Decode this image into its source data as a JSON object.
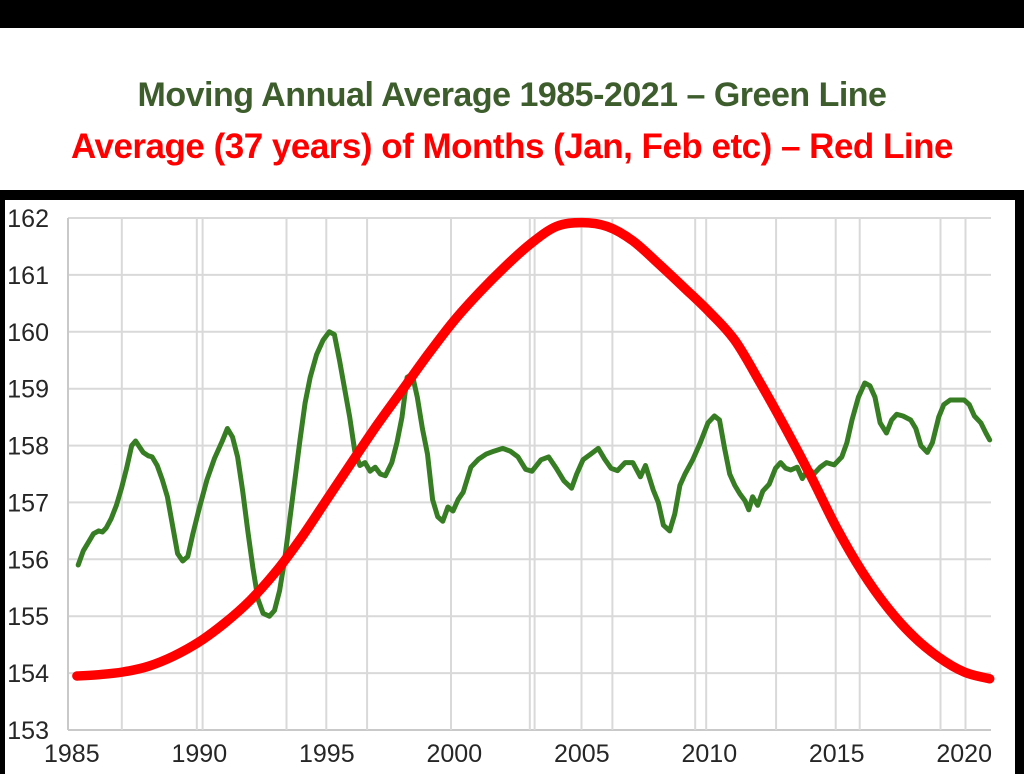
{
  "title": {
    "line1": "Moving Annual Average 1985-2021 – Green Line",
    "line2": "Average (37 years) of Months (Jan, Feb etc) – Red Line"
  },
  "colors": {
    "title_green": "#3d5d2d",
    "title_red": "#fe0000",
    "line_green": "#377d23",
    "line_red": "#fe0000",
    "gridline": "#d9d9d9",
    "axis_line": "#c9c9c9",
    "tick_label": "#262626",
    "frame_border": "#000000",
    "top_bar": "#000000"
  },
  "chart_data": {
    "type": "line",
    "title": "",
    "xlabel": "",
    "ylabel": "",
    "grid": true,
    "legend_position": "none (legend given in title text)",
    "x_axis": {
      "range": [
        1984.85,
        2021.05
      ],
      "ticks": [
        1985,
        1990,
        1995,
        2000,
        2005,
        2010,
        2015,
        2020
      ]
    },
    "y_axis": {
      "range": [
        153,
        162
      ],
      "ticks": [
        153,
        154,
        155,
        156,
        157,
        158,
        159,
        160,
        161,
        162
      ]
    },
    "x_gridlines_years": [
      1984.85,
      1986.96,
      1989.9,
      1990.13,
      1993.42,
      1994.98,
      1996.58,
      1999.87,
      2002.96,
      2003.15,
      2004.99,
      2006.2,
      2009.45,
      2009.88,
      2012.62,
      2014.96,
      2015.9,
      2019.07,
      2020.05
    ],
    "series": [
      {
        "name": "Moving Annual Average 1985-2021 (Green Line)",
        "color_key": "line_green",
        "stroke_width": 5,
        "smooth": false,
        "points": [
          [
            1985.25,
            155.9
          ],
          [
            1985.45,
            156.15
          ],
          [
            1985.65,
            156.3
          ],
          [
            1985.85,
            156.45
          ],
          [
            1986.05,
            156.5
          ],
          [
            1986.2,
            156.48
          ],
          [
            1986.35,
            156.55
          ],
          [
            1986.55,
            156.72
          ],
          [
            1986.75,
            156.95
          ],
          [
            1986.95,
            157.25
          ],
          [
            1987.15,
            157.6
          ],
          [
            1987.35,
            158.0
          ],
          [
            1987.5,
            158.08
          ],
          [
            1987.65,
            157.98
          ],
          [
            1987.8,
            157.88
          ],
          [
            1988.0,
            157.82
          ],
          [
            1988.15,
            157.8
          ],
          [
            1988.35,
            157.65
          ],
          [
            1988.55,
            157.4
          ],
          [
            1988.75,
            157.1
          ],
          [
            1988.95,
            156.6
          ],
          [
            1989.15,
            156.1
          ],
          [
            1989.35,
            155.97
          ],
          [
            1989.55,
            156.05
          ],
          [
            1989.75,
            156.45
          ],
          [
            1990.0,
            156.9
          ],
          [
            1990.3,
            157.4
          ],
          [
            1990.6,
            157.78
          ],
          [
            1990.9,
            158.08
          ],
          [
            1991.1,
            158.3
          ],
          [
            1991.3,
            158.15
          ],
          [
            1991.5,
            157.8
          ],
          [
            1991.7,
            157.2
          ],
          [
            1991.9,
            156.5
          ],
          [
            1992.1,
            155.85
          ],
          [
            1992.3,
            155.3
          ],
          [
            1992.5,
            155.05
          ],
          [
            1992.75,
            155.0
          ],
          [
            1992.95,
            155.1
          ],
          [
            1993.15,
            155.45
          ],
          [
            1993.35,
            156.0
          ],
          [
            1993.55,
            156.7
          ],
          [
            1993.75,
            157.4
          ],
          [
            1993.95,
            158.1
          ],
          [
            1994.15,
            158.75
          ],
          [
            1994.35,
            159.2
          ],
          [
            1994.6,
            159.6
          ],
          [
            1994.85,
            159.85
          ],
          [
            1995.1,
            160.0
          ],
          [
            1995.3,
            159.95
          ],
          [
            1995.5,
            159.5
          ],
          [
            1995.7,
            159.0
          ],
          [
            1995.9,
            158.5
          ],
          [
            1996.1,
            157.9
          ],
          [
            1996.3,
            157.65
          ],
          [
            1996.5,
            157.7
          ],
          [
            1996.7,
            157.55
          ],
          [
            1996.9,
            157.62
          ],
          [
            1997.1,
            157.5
          ],
          [
            1997.3,
            157.47
          ],
          [
            1997.55,
            157.7
          ],
          [
            1997.75,
            158.05
          ],
          [
            1997.95,
            158.5
          ],
          [
            1998.15,
            159.2
          ],
          [
            1998.35,
            159.25
          ],
          [
            1998.55,
            158.85
          ],
          [
            1998.75,
            158.3
          ],
          [
            1998.95,
            157.85
          ],
          [
            1999.15,
            157.05
          ],
          [
            1999.35,
            156.75
          ],
          [
            1999.55,
            156.67
          ],
          [
            1999.75,
            156.92
          ],
          [
            1999.95,
            156.85
          ],
          [
            2000.15,
            157.05
          ],
          [
            2000.35,
            157.18
          ],
          [
            2000.65,
            157.62
          ],
          [
            2000.95,
            157.76
          ],
          [
            2001.25,
            157.85
          ],
          [
            2001.55,
            157.9
          ],
          [
            2001.9,
            157.95
          ],
          [
            2002.2,
            157.9
          ],
          [
            2002.5,
            157.8
          ],
          [
            2002.8,
            157.58
          ],
          [
            2003.05,
            157.55
          ],
          [
            2003.4,
            157.75
          ],
          [
            2003.7,
            157.8
          ],
          [
            2004.0,
            157.6
          ],
          [
            2004.3,
            157.38
          ],
          [
            2004.6,
            157.25
          ],
          [
            2004.8,
            157.5
          ],
          [
            2005.05,
            157.75
          ],
          [
            2005.35,
            157.85
          ],
          [
            2005.65,
            157.95
          ],
          [
            2005.9,
            157.76
          ],
          [
            2006.15,
            157.6
          ],
          [
            2006.4,
            157.56
          ],
          [
            2006.7,
            157.7
          ],
          [
            2007.0,
            157.7
          ],
          [
            2007.3,
            157.45
          ],
          [
            2007.5,
            157.65
          ],
          [
            2007.8,
            157.22
          ],
          [
            2008.0,
            157.0
          ],
          [
            2008.2,
            156.6
          ],
          [
            2008.45,
            156.5
          ],
          [
            2008.65,
            156.8
          ],
          [
            2008.85,
            157.3
          ],
          [
            2009.05,
            157.5
          ],
          [
            2009.35,
            157.75
          ],
          [
            2009.65,
            158.05
          ],
          [
            2009.95,
            158.4
          ],
          [
            2010.2,
            158.52
          ],
          [
            2010.4,
            158.45
          ],
          [
            2010.6,
            157.95
          ],
          [
            2010.8,
            157.5
          ],
          [
            2011.0,
            157.3
          ],
          [
            2011.2,
            157.15
          ],
          [
            2011.4,
            157.03
          ],
          [
            2011.55,
            156.87
          ],
          [
            2011.7,
            157.1
          ],
          [
            2011.9,
            156.95
          ],
          [
            2012.1,
            157.2
          ],
          [
            2012.35,
            157.32
          ],
          [
            2012.6,
            157.6
          ],
          [
            2012.8,
            157.7
          ],
          [
            2013.0,
            157.6
          ],
          [
            2013.2,
            157.57
          ],
          [
            2013.45,
            157.62
          ],
          [
            2013.65,
            157.42
          ],
          [
            2013.9,
            157.6
          ],
          [
            2014.1,
            157.5
          ],
          [
            2014.35,
            157.62
          ],
          [
            2014.6,
            157.7
          ],
          [
            2014.9,
            157.66
          ],
          [
            2015.2,
            157.8
          ],
          [
            2015.4,
            158.05
          ],
          [
            2015.6,
            158.45
          ],
          [
            2015.85,
            158.85
          ],
          [
            2016.1,
            159.1
          ],
          [
            2016.3,
            159.05
          ],
          [
            2016.5,
            158.85
          ],
          [
            2016.7,
            158.4
          ],
          [
            2016.95,
            158.22
          ],
          [
            2017.15,
            158.45
          ],
          [
            2017.35,
            158.55
          ],
          [
            2017.6,
            158.52
          ],
          [
            2017.9,
            158.45
          ],
          [
            2018.1,
            158.3
          ],
          [
            2018.3,
            158.0
          ],
          [
            2018.55,
            157.88
          ],
          [
            2018.75,
            158.05
          ],
          [
            2019.0,
            158.5
          ],
          [
            2019.2,
            158.72
          ],
          [
            2019.45,
            158.8
          ],
          [
            2019.7,
            158.8
          ],
          [
            2020.0,
            158.8
          ],
          [
            2020.2,
            158.72
          ],
          [
            2020.4,
            158.52
          ],
          [
            2020.65,
            158.4
          ],
          [
            2020.85,
            158.22
          ],
          [
            2021.0,
            158.1
          ]
        ]
      },
      {
        "name": "Average (37 years) of Months (Jan, Feb etc) (Red Line)",
        "color_key": "line_red",
        "stroke_width": 9.5,
        "smooth": true,
        "points": [
          [
            1985.2,
            153.95
          ],
          [
            1986,
            153.97
          ],
          [
            1987,
            154.02
          ],
          [
            1988,
            154.12
          ],
          [
            1989,
            154.3
          ],
          [
            1990,
            154.55
          ],
          [
            1991,
            154.88
          ],
          [
            1992,
            155.28
          ],
          [
            1993,
            155.78
          ],
          [
            1994,
            156.38
          ],
          [
            1995,
            157.05
          ],
          [
            1996,
            157.72
          ],
          [
            1997,
            158.38
          ],
          [
            1998,
            159.0
          ],
          [
            1999,
            159.62
          ],
          [
            2000,
            160.2
          ],
          [
            2001,
            160.7
          ],
          [
            2002,
            161.15
          ],
          [
            2003,
            161.55
          ],
          [
            2004,
            161.85
          ],
          [
            2005,
            161.92
          ],
          [
            2006,
            161.85
          ],
          [
            2007,
            161.6
          ],
          [
            2008,
            161.2
          ],
          [
            2009,
            160.78
          ],
          [
            2010,
            160.35
          ],
          [
            2011,
            159.85
          ],
          [
            2012,
            159.1
          ],
          [
            2013,
            158.3
          ],
          [
            2014,
            157.45
          ],
          [
            2015,
            156.55
          ],
          [
            2016,
            155.78
          ],
          [
            2017,
            155.15
          ],
          [
            2018,
            154.65
          ],
          [
            2019,
            154.28
          ],
          [
            2020,
            154.02
          ],
          [
            2021,
            153.9
          ]
        ]
      }
    ]
  }
}
